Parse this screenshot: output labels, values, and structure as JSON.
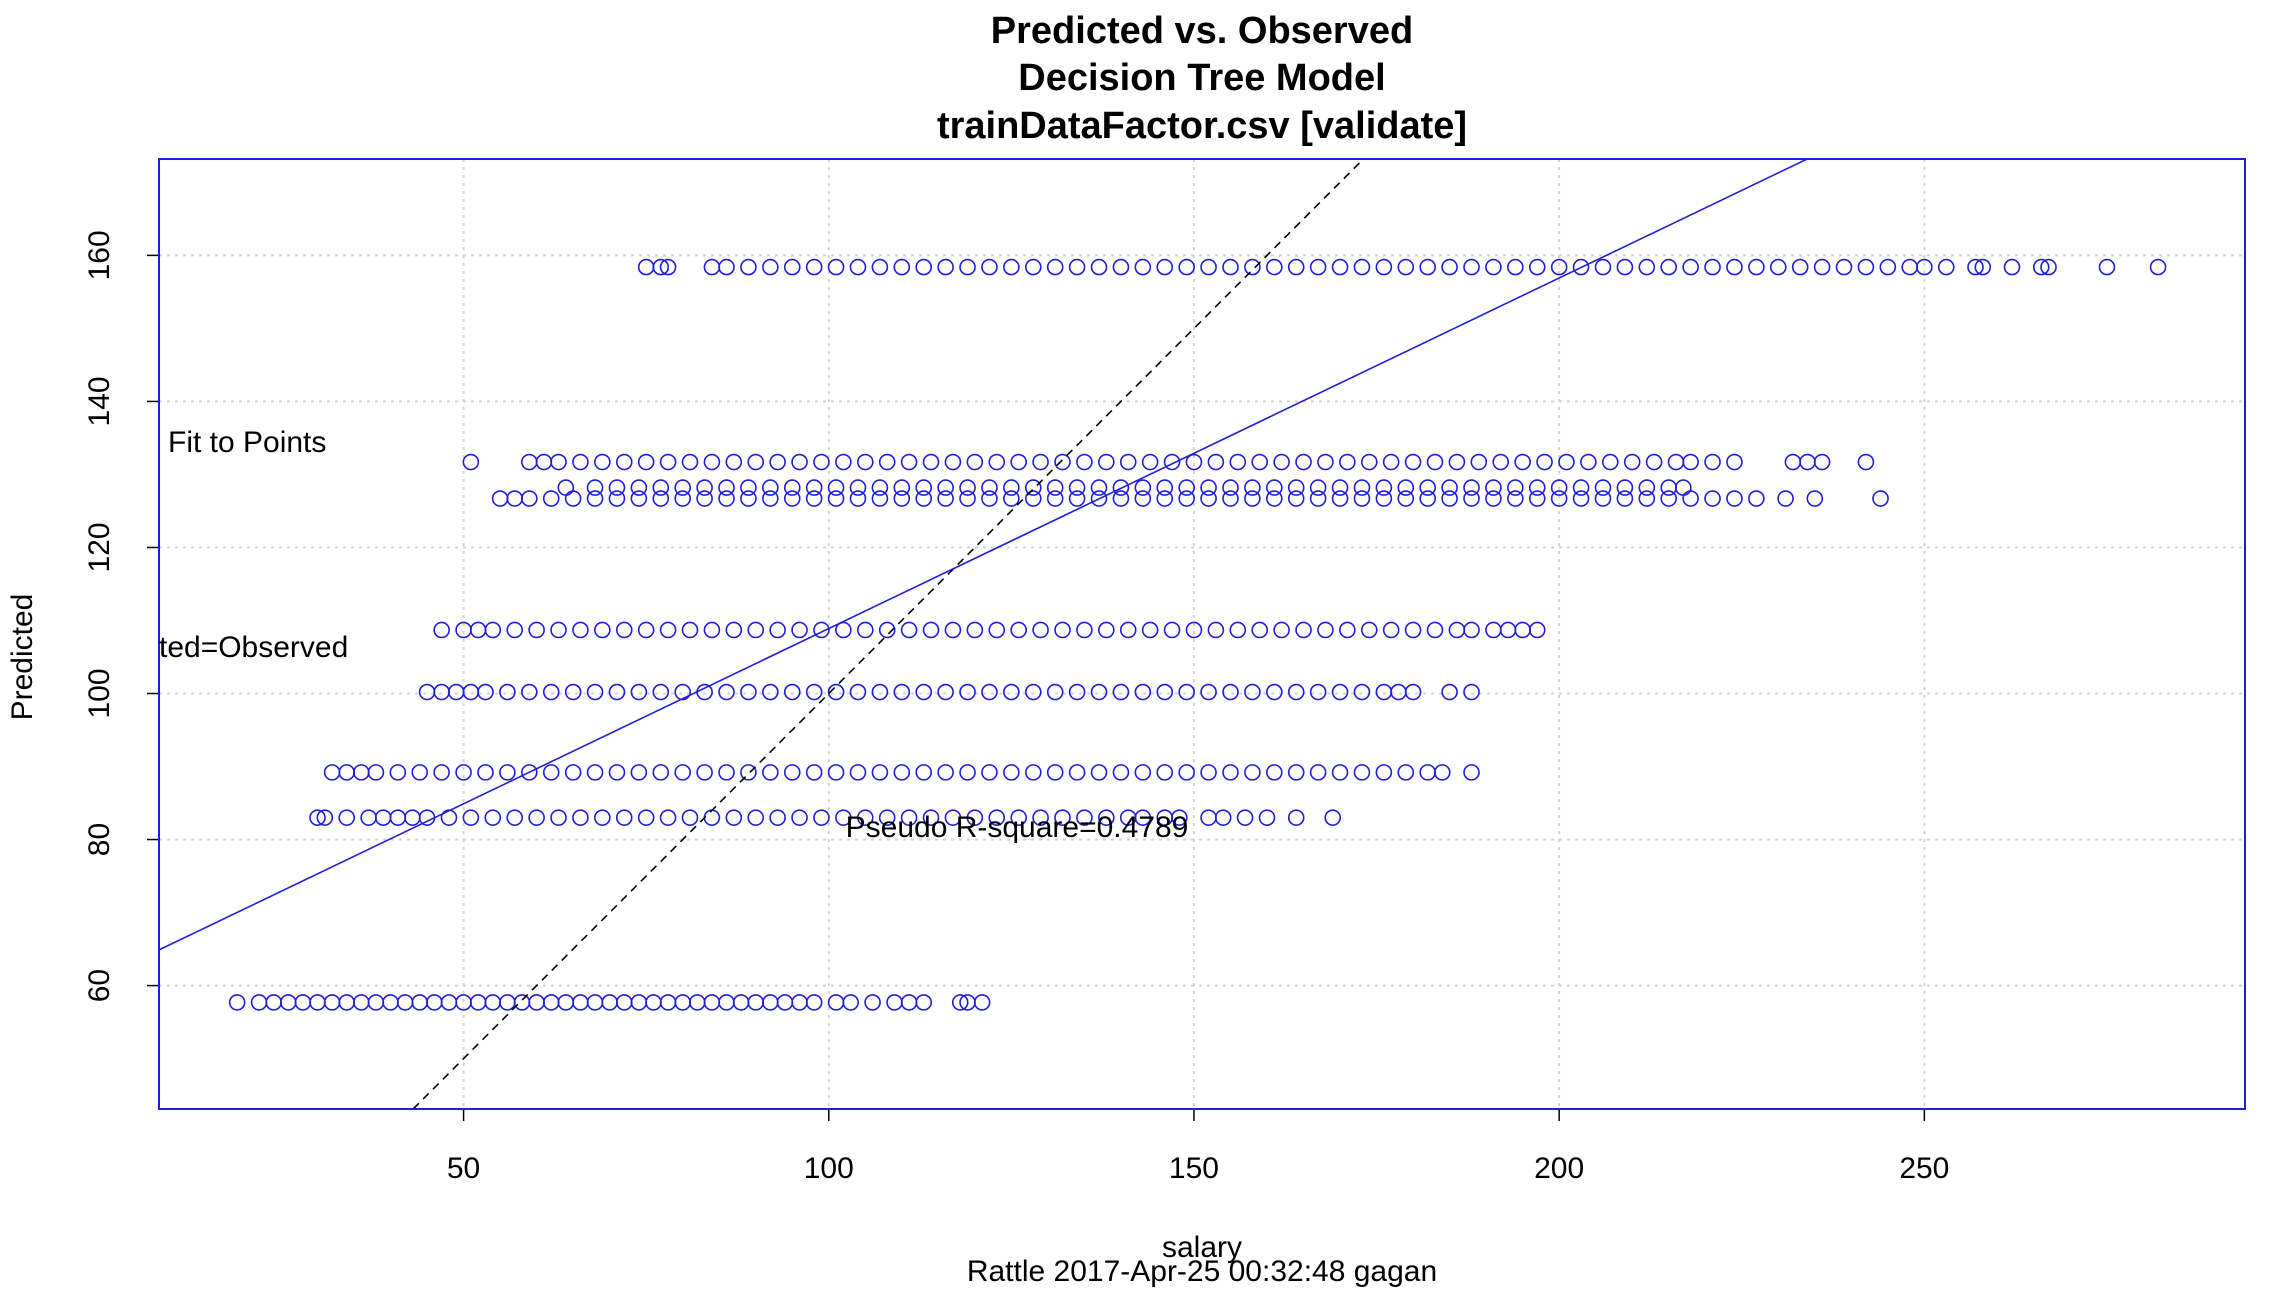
{
  "chart_data": {
    "type": "scatter",
    "title_lines": [
      "Predicted vs. Observed",
      "Decision Tree Model",
      "trainDataFactor.csv [validate]"
    ],
    "x_label": "salary",
    "y_label": "Predicted",
    "subtitle": "Rattle 2017-Apr-25 00:32:48 gagan",
    "annotations": [
      "Fit to Points",
      "ted=Observed",
      "Pseudo R-square=0.4789"
    ],
    "xlim": [
      8.3,
      293.9
    ],
    "ylim": [
      43.1,
      173.2
    ],
    "xticks": [
      50,
      100,
      150,
      200,
      250
    ],
    "yticks": [
      60,
      80,
      100,
      120,
      140,
      160
    ],
    "grid": true,
    "color": "#1f1fd6",
    "fit_line": {
      "intercept": 60.9,
      "slope": 0.48
    },
    "series": [
      {
        "y": 57.7,
        "x": [
          19,
          22,
          24,
          26,
          28,
          30,
          32,
          34,
          36,
          38,
          40,
          42,
          44,
          46,
          48,
          50,
          52,
          54,
          56,
          58,
          60,
          62,
          64,
          66,
          68,
          70,
          72,
          74,
          76,
          78,
          80,
          82,
          84,
          86,
          88,
          90,
          92,
          94,
          96,
          98,
          101,
          103,
          106,
          109,
          111,
          113,
          118,
          119,
          121
        ]
      },
      {
        "y": 83.0,
        "x": [
          30,
          31,
          34,
          37,
          39,
          41,
          43,
          45,
          48,
          51,
          54,
          57,
          60,
          63,
          66,
          69,
          72,
          75,
          78,
          81,
          84,
          87,
          90,
          93,
          96,
          99,
          102,
          105,
          108,
          111,
          114,
          117,
          120,
          123,
          126,
          129,
          132,
          135,
          138,
          141,
          143,
          146,
          148,
          152,
          154,
          157,
          160,
          164,
          169
        ]
      },
      {
        "y": 89.2,
        "x": [
          32,
          34,
          36,
          38,
          41,
          44,
          47,
          50,
          53,
          56,
          59,
          62,
          65,
          68,
          71,
          74,
          77,
          80,
          83,
          86,
          89,
          92,
          95,
          98,
          101,
          104,
          107,
          110,
          113,
          116,
          119,
          122,
          125,
          128,
          131,
          134,
          137,
          140,
          143,
          146,
          149,
          152,
          155,
          158,
          161,
          164,
          167,
          170,
          173,
          176,
          179,
          182,
          184,
          188
        ]
      },
      {
        "y": 100.2,
        "x": [
          45,
          47,
          49,
          51,
          53,
          56,
          59,
          62,
          65,
          68,
          71,
          74,
          77,
          80,
          83,
          86,
          89,
          92,
          95,
          98,
          101,
          104,
          107,
          110,
          113,
          116,
          119,
          122,
          125,
          128,
          131,
          134,
          137,
          140,
          143,
          146,
          149,
          152,
          155,
          158,
          161,
          164,
          167,
          170,
          173,
          176,
          178,
          180,
          185,
          188
        ]
      },
      {
        "y": 108.7,
        "x": [
          47,
          50,
          52,
          54,
          57,
          60,
          63,
          66,
          69,
          72,
          75,
          78,
          81,
          84,
          87,
          90,
          93,
          96,
          99,
          102,
          105,
          108,
          111,
          114,
          117,
          120,
          123,
          126,
          129,
          132,
          135,
          138,
          141,
          144,
          147,
          150,
          153,
          156,
          159,
          162,
          165,
          168,
          171,
          174,
          177,
          180,
          183,
          186,
          188,
          191,
          193,
          195,
          197
        ]
      },
      {
        "y": 126.7,
        "x": [
          55,
          57,
          59,
          62,
          65,
          68,
          71,
          74,
          77,
          80,
          83,
          86,
          89,
          92,
          95,
          98,
          101,
          104,
          107,
          110,
          113,
          116,
          119,
          122,
          125,
          128,
          131,
          134,
          137,
          140,
          143,
          146,
          149,
          152,
          155,
          158,
          161,
          164,
          167,
          170,
          173,
          176,
          179,
          182,
          185,
          188,
          191,
          194,
          197,
          200,
          203,
          206,
          209,
          212,
          215,
          218,
          221,
          224,
          227,
          231,
          235,
          244
        ]
      },
      {
        "y": 128.2,
        "x": [
          64,
          68,
          71,
          74,
          77,
          80,
          83,
          86,
          89,
          92,
          95,
          98,
          101,
          104,
          107,
          110,
          113,
          116,
          119,
          122,
          125,
          128,
          131,
          134,
          137,
          140,
          143,
          146,
          149,
          152,
          155,
          158,
          161,
          164,
          167,
          170,
          173,
          176,
          179,
          182,
          185,
          188,
          191,
          194,
          197,
          200,
          203,
          206,
          209,
          212,
          215,
          217
        ]
      },
      {
        "y": 131.7,
        "x": [
          51,
          59,
          61,
          63,
          66,
          69,
          72,
          75,
          78,
          81,
          84,
          87,
          90,
          93,
          96,
          99,
          102,
          105,
          108,
          111,
          114,
          117,
          120,
          123,
          126,
          129,
          132,
          135,
          138,
          141,
          144,
          147,
          150,
          153,
          156,
          159,
          162,
          165,
          168,
          171,
          174,
          177,
          180,
          183,
          186,
          189,
          192,
          195,
          198,
          201,
          204,
          207,
          210,
          213,
          216,
          218,
          221,
          224,
          232,
          234,
          236,
          242
        ]
      },
      {
        "y": 158.4,
        "x": [
          75,
          77,
          78,
          84,
          86,
          89,
          92,
          95,
          98,
          101,
          104,
          107,
          110,
          113,
          116,
          119,
          122,
          125,
          128,
          131,
          134,
          137,
          140,
          143,
          146,
          149,
          152,
          155,
          158,
          161,
          164,
          167,
          170,
          173,
          176,
          179,
          182,
          185,
          188,
          191,
          194,
          197,
          200,
          203,
          206,
          209,
          212,
          215,
          218,
          221,
          224,
          227,
          230,
          233,
          236,
          239,
          242,
          245,
          248,
          250,
          253,
          257,
          258,
          262,
          266,
          267,
          275,
          282
        ]
      }
    ]
  }
}
